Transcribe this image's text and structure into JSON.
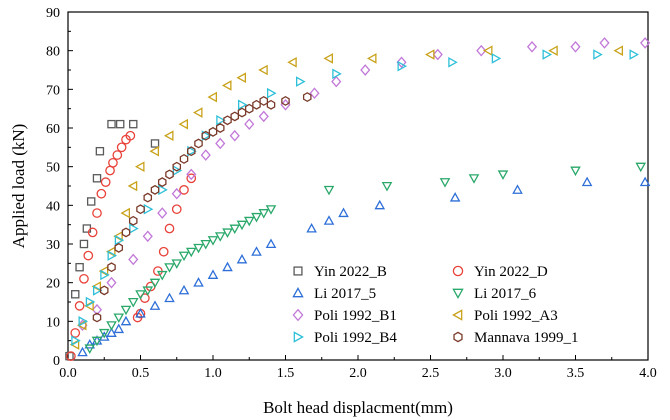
{
  "chart_data": {
    "type": "scatter",
    "xlabel": "Bolt head displacment(mm)",
    "ylabel": "Applied load (kN)",
    "xlim": [
      0,
      4.0
    ],
    "ylim": [
      0,
      90
    ],
    "xticks": [
      "0.0",
      "0.5",
      "1.0",
      "1.5",
      "2.0",
      "2.5",
      "3.0",
      "3.5",
      "4.0"
    ],
    "yticks": [
      "0",
      "10",
      "20",
      "30",
      "40",
      "50",
      "60",
      "70",
      "80",
      "90"
    ],
    "grid": false,
    "legend_position": "bottom-right",
    "series": [
      {
        "name": "Yin 2022_B",
        "marker": "square",
        "color": "#5a5a5a",
        "x": [
          0.01,
          0.05,
          0.08,
          0.11,
          0.13,
          0.16,
          0.2,
          0.22,
          0.3,
          0.36,
          0.45,
          0.6
        ],
        "y": [
          1,
          17,
          24,
          30,
          34,
          41,
          47,
          54,
          61,
          61,
          61,
          56
        ]
      },
      {
        "name": "Yin 2022_D",
        "marker": "circle",
        "color": "#e8423a",
        "x": [
          0.02,
          0.05,
          0.08,
          0.11,
          0.14,
          0.17,
          0.2,
          0.23,
          0.26,
          0.29,
          0.31,
          0.34,
          0.37,
          0.4,
          0.43,
          0.48,
          0.5,
          0.53,
          0.57,
          0.62,
          0.66,
          0.7,
          0.75,
          0.8,
          0.85
        ],
        "y": [
          1,
          7,
          14,
          21,
          27,
          33,
          38,
          43,
          46,
          49,
          51,
          53,
          55,
          57,
          58,
          11,
          12,
          16,
          19,
          23,
          28,
          34,
          39,
          44,
          47
        ]
      },
      {
        "name": "Li 2017_5",
        "marker": "triangle-up",
        "color": "#2e6fd8",
        "x": [
          0.1,
          0.15,
          0.2,
          0.25,
          0.3,
          0.35,
          0.4,
          0.5,
          0.6,
          0.7,
          0.8,
          0.9,
          1.0,
          1.1,
          1.2,
          1.3,
          1.4,
          1.68,
          1.8,
          1.9,
          2.15,
          2.67,
          3.1,
          3.58,
          3.98
        ],
        "y": [
          2,
          4,
          5,
          6,
          7,
          8,
          10,
          12,
          14,
          16,
          18,
          20,
          22,
          24,
          26,
          28,
          30,
          34,
          36,
          38,
          40,
          42,
          44,
          46,
          46
        ]
      },
      {
        "name": "Li 2017_6",
        "marker": "triangle-down",
        "color": "#2aa86a",
        "x": [
          0.15,
          0.2,
          0.25,
          0.3,
          0.35,
          0.4,
          0.45,
          0.5,
          0.55,
          0.6,
          0.65,
          0.7,
          0.75,
          0.8,
          0.85,
          0.9,
          0.95,
          1.0,
          1.05,
          1.1,
          1.15,
          1.2,
          1.25,
          1.3,
          1.35,
          1.4,
          1.8,
          2.2,
          2.6,
          2.8,
          3.0,
          3.5,
          3.95
        ],
        "y": [
          3,
          5,
          7,
          9,
          11,
          13,
          15,
          17,
          18,
          20,
          22,
          24,
          25,
          27,
          28,
          29,
          30,
          31,
          32,
          33,
          34,
          35,
          36,
          37,
          38,
          39,
          44,
          45,
          46,
          47,
          48,
          49,
          50
        ]
      },
      {
        "name": "Poli 1992_B1",
        "marker": "diamond",
        "color": "#c178d8",
        "x": [
          0.1,
          0.2,
          0.3,
          0.45,
          0.55,
          0.65,
          0.75,
          0.85,
          0.95,
          1.05,
          1.15,
          1.25,
          1.35,
          1.5,
          1.7,
          1.85,
          2.05,
          2.3,
          2.55,
          2.85,
          3.2,
          3.5,
          3.7,
          3.98
        ],
        "y": [
          9,
          13,
          20,
          26,
          32,
          38,
          43,
          48,
          53,
          56,
          58,
          61,
          63,
          66,
          69,
          72,
          75,
          77,
          79,
          80,
          81,
          81,
          82,
          82
        ]
      },
      {
        "name": "Poli 1992_A3",
        "marker": "triangle-left",
        "color": "#c9a21a",
        "x": [
          0.05,
          0.1,
          0.15,
          0.2,
          0.25,
          0.3,
          0.35,
          0.4,
          0.45,
          0.5,
          0.6,
          0.7,
          0.8,
          0.9,
          1.0,
          1.1,
          1.2,
          1.35,
          1.55,
          1.8,
          2.1,
          2.5,
          2.9,
          3.35,
          3.8
        ],
        "y": [
          4,
          9,
          14,
          19,
          23,
          28,
          32,
          38,
          45,
          50,
          54,
          58,
          61,
          64,
          68,
          71,
          73,
          75,
          77,
          78,
          78,
          79,
          80,
          80,
          80
        ]
      },
      {
        "name": "Poli 1992_B4",
        "marker": "triangle-right",
        "color": "#2ec0d8",
        "x": [
          0.05,
          0.1,
          0.15,
          0.2,
          0.25,
          0.3,
          0.35,
          0.45,
          0.55,
          0.65,
          0.75,
          0.85,
          0.95,
          1.05,
          1.2,
          1.4,
          1.6,
          1.85,
          2.3,
          2.65,
          2.95,
          3.3,
          3.65,
          3.9
        ],
        "y": [
          5,
          10,
          15,
          18,
          22,
          27,
          31,
          34,
          39,
          44,
          49,
          54,
          58,
          62,
          66,
          69,
          72,
          74,
          76,
          77,
          78,
          79,
          79,
          79
        ]
      },
      {
        "name": "Mannava 1999_1",
        "marker": "hexagon",
        "color": "#7a3a2a",
        "x": [
          0.2,
          0.25,
          0.3,
          0.35,
          0.4,
          0.45,
          0.5,
          0.55,
          0.6,
          0.65,
          0.7,
          0.75,
          0.8,
          0.85,
          0.9,
          0.95,
          1.0,
          1.05,
          1.1,
          1.15,
          1.2,
          1.25,
          1.3,
          1.35,
          1.4,
          1.5,
          1.65
        ],
        "y": [
          11,
          18,
          24,
          29,
          33,
          36,
          39,
          42,
          44,
          46,
          48,
          50,
          52,
          54,
          56,
          58,
          59,
          60,
          62,
          63,
          64,
          65,
          66,
          67,
          66,
          67,
          68
        ]
      }
    ]
  }
}
